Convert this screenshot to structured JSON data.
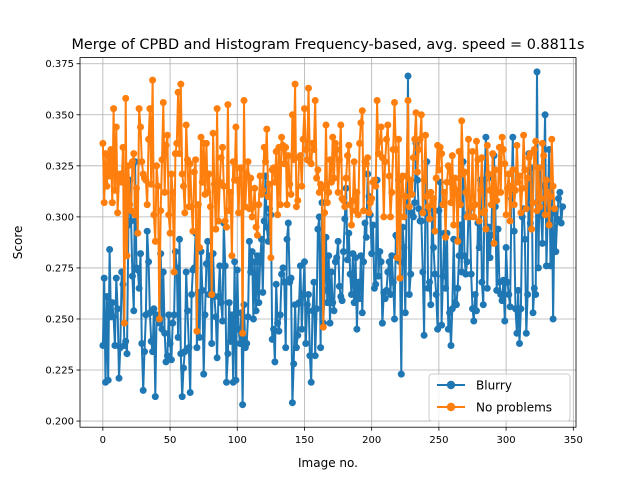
{
  "chart_data": {
    "type": "line",
    "title": "Merge of CPBD and Histogram Frequency-based, avg. speed = 0.8811s",
    "xlabel": "Image no.",
    "ylabel": "Score",
    "xlim": [
      -17,
      352
    ],
    "ylim": [
      0.197,
      0.378
    ],
    "xticks": [
      0,
      50,
      100,
      150,
      200,
      250,
      300,
      350
    ],
    "xtick_labels": [
      "0",
      "50",
      "100",
      "150",
      "200",
      "250",
      "300",
      "350"
    ],
    "yticks": [
      0.2,
      0.225,
      0.25,
      0.275,
      0.3,
      0.325,
      0.35,
      0.375
    ],
    "ytick_labels": [
      "0.200",
      "0.225",
      "0.250",
      "0.275",
      "0.300",
      "0.325",
      "0.350",
      "0.375"
    ],
    "grid": true,
    "legend": "lower-right",
    "series": [
      {
        "name": "Blurry",
        "color": "#1f77b4",
        "values": [
          0.237,
          0.27,
          0.219,
          0.261,
          0.22,
          0.284,
          0.251,
          0.258,
          0.251,
          0.237,
          0.27,
          0.255,
          0.221,
          0.236,
          0.273,
          0.267,
          0.237,
          0.239,
          0.233,
          0.296,
          0.318,
          0.298,
          0.271,
          0.254,
          0.327,
          0.275,
          0.274,
          0.265,
          0.282,
          0.238,
          0.215,
          0.234,
          0.252,
          0.293,
          0.278,
          0.253,
          0.239,
          0.234,
          0.255,
          0.212,
          0.252,
          0.25,
          0.248,
          0.282,
          0.245,
          0.273,
          0.243,
          0.229,
          0.232,
          0.252,
          0.238,
          0.23,
          0.248,
          0.252,
          0.283,
          0.275,
          0.241,
          0.289,
          0.233,
          0.212,
          0.226,
          0.234,
          0.273,
          0.254,
          0.236,
          0.214,
          0.262,
          0.274,
          0.275,
          0.292,
          0.236,
          0.263,
          0.241,
          0.283,
          0.264,
          0.223,
          0.252,
          0.277,
          0.288,
          0.262,
          0.281,
          0.238,
          0.282,
          0.261,
          0.251,
          0.231,
          0.261,
          0.276,
          0.258,
          0.249,
          0.297,
          0.276,
          0.219,
          0.233,
          0.258,
          0.239,
          0.252,
          0.219,
          0.278,
          0.22,
          0.274,
          0.245,
          0.238,
          0.253,
          0.208,
          0.257,
          0.236,
          0.238,
          0.251,
          0.288,
          0.273,
          0.283,
          0.25,
          0.278,
          0.254,
          0.281,
          0.258,
          0.278,
          0.289,
          0.263,
          0.298,
          0.32,
          0.295,
          0.288,
          0.304,
          0.301,
          0.24,
          0.245,
          0.229,
          0.267,
          0.248,
          0.244,
          0.252,
          0.272,
          0.275,
          0.268,
          0.236,
          0.289,
          0.297,
          0.268,
          0.27,
          0.209,
          0.228,
          0.257,
          0.236,
          0.242,
          0.258,
          0.276,
          0.245,
          0.262,
          0.278,
          0.238,
          0.257,
          0.262,
          0.232,
          0.219,
          0.254,
          0.268,
          0.232,
          0.255,
          0.294,
          0.3,
          0.236,
          0.307,
          0.248,
          0.264,
          0.29,
          0.258,
          0.281,
          0.248,
          0.273,
          0.258,
          0.254,
          0.278,
          0.28,
          0.288,
          0.266,
          0.261,
          0.259,
          0.283,
          0.299,
          0.314,
          0.279,
          0.292,
          0.272,
          0.262,
          0.282,
          0.258,
          0.28,
          0.245,
          0.268,
          0.26,
          0.281,
          0.253,
          0.278,
          0.297,
          0.29,
          0.321,
          0.31,
          0.301,
          0.282,
          0.296,
          0.265,
          0.267,
          0.318,
          0.271,
          0.283,
          0.278,
          0.248,
          0.263,
          0.26,
          0.264,
          0.273,
          0.278,
          0.262,
          0.281,
          0.268,
          0.25,
          0.291,
          0.29,
          0.318,
          0.278,
          0.223,
          0.295,
          0.285,
          0.253,
          0.307,
          0.369,
          0.262,
          0.272,
          0.302,
          0.3,
          0.307,
          0.336,
          0.318,
          0.304,
          0.298,
          0.298,
          0.273,
          0.242,
          0.31,
          0.327,
          0.265,
          0.268,
          0.257,
          0.304,
          0.285,
          0.272,
          0.262,
          0.245,
          0.303,
          0.317,
          0.247,
          0.271,
          0.292,
          0.265,
          0.292,
          0.245,
          0.253,
          0.237,
          0.255,
          0.289,
          0.258,
          0.257,
          0.265,
          0.281,
          0.296,
          0.273,
          0.327,
          0.281,
          0.272,
          0.278,
          0.302,
          0.304,
          0.272,
          0.255,
          0.249,
          0.262,
          0.254,
          0.297,
          0.285,
          0.318,
          0.268,
          0.257,
          0.318,
          0.339,
          0.265,
          0.295,
          0.28,
          0.291,
          0.319,
          0.33,
          0.305,
          0.264,
          0.294,
          0.268,
          0.262,
          0.259,
          0.269,
          0.249,
          0.285,
          0.268,
          0.262,
          0.256,
          0.309,
          0.339,
          0.293,
          0.255,
          0.243,
          0.264,
          0.238,
          0.255,
          0.3,
          0.304,
          0.289,
          0.243,
          0.262,
          0.331,
          0.297,
          0.324,
          0.253,
          0.265,
          0.262,
          0.371,
          0.275,
          0.324,
          0.301,
          0.287,
          0.315,
          0.35,
          0.276,
          0.302,
          0.333,
          0.276,
          0.315,
          0.25,
          0.302,
          0.283,
          0.299,
          0.309,
          0.312,
          0.297,
          0.305
        ]
      },
      {
        "name": "No problems",
        "color": "#ff7f0e",
        "values": [
          0.336,
          0.307,
          0.331,
          0.315,
          0.33,
          0.32,
          0.333,
          0.307,
          0.353,
          0.313,
          0.344,
          0.302,
          0.319,
          0.321,
          0.317,
          0.334,
          0.248,
          0.358,
          0.281,
          0.325,
          0.306,
          0.303,
          0.327,
          0.331,
          0.301,
          0.314,
          0.292,
          0.353,
          0.344,
          0.327,
          0.321,
          0.319,
          0.318,
          0.306,
          0.338,
          0.353,
          0.316,
          0.367,
          0.301,
          0.288,
          0.325,
          0.315,
          0.25,
          0.303,
          0.328,
          0.356,
          0.312,
          0.335,
          0.34,
          0.301,
          0.292,
          0.321,
          0.312,
          0.273,
          0.331,
          0.336,
          0.361,
          0.331,
          0.365,
          0.321,
          0.315,
          0.302,
          0.345,
          0.328,
          0.305,
          0.326,
          0.305,
          0.293,
          0.322,
          0.328,
          0.244,
          0.306,
          0.285,
          0.339,
          0.317,
          0.336,
          0.311,
          0.336,
          0.312,
          0.321,
          0.305,
          0.262,
          0.341,
          0.316,
          0.294,
          0.353,
          0.298,
          0.317,
          0.329,
          0.334,
          0.315,
          0.298,
          0.295,
          0.355,
          0.303,
          0.312,
          0.281,
          0.327,
          0.318,
          0.344,
          0.318,
          0.302,
          0.324,
          0.324,
          0.243,
          0.357,
          0.305,
          0.321,
          0.327,
          0.304,
          0.319,
          0.3,
          0.305,
          0.314,
          0.295,
          0.291,
          0.306,
          0.32,
          0.311,
          0.313,
          0.334,
          0.327,
          0.343,
          0.31,
          0.316,
          0.28,
          0.323,
          0.324,
          0.317,
          0.332,
          0.301,
          0.334,
          0.306,
          0.339,
          0.335,
          0.326,
          0.334,
          0.306,
          0.33,
          0.316,
          0.311,
          0.35,
          0.328,
          0.365,
          0.305,
          0.308,
          0.329,
          0.33,
          0.315,
          0.338,
          0.353,
          0.333,
          0.328,
          0.363,
          0.327,
          0.326,
          0.336,
          0.333,
          0.357,
          0.319,
          0.323,
          0.312,
          0.316,
          0.314,
          0.246,
          0.302,
          0.345,
          0.307,
          0.312,
          0.328,
          0.317,
          0.339,
          0.319,
          0.336,
          0.333,
          0.312,
          0.328,
          0.345,
          0.309,
          0.308,
          0.305,
          0.319,
          0.33,
          0.335,
          0.306,
          0.296,
          0.308,
          0.327,
          0.303,
          0.312,
          0.301,
          0.336,
          0.346,
          0.352,
          0.303,
          0.327,
          0.326,
          0.329,
          0.302,
          0.307,
          0.309,
          0.317,
          0.318,
          0.315,
          0.357,
          0.331,
          0.337,
          0.344,
          0.329,
          0.3,
          0.327,
          0.338,
          0.345,
          0.32,
          0.3,
          0.312,
          0.333,
          0.356,
          0.333,
          0.28,
          0.338,
          0.27,
          0.319,
          0.32,
          0.3,
          0.31,
          0.32,
          0.357,
          0.305,
          0.318,
          0.311,
          0.329,
          0.338,
          0.351,
          0.322,
          0.333,
          0.338,
          0.35,
          0.302,
          0.318,
          0.34,
          0.31,
          0.305,
          0.299,
          0.312,
          0.306,
          0.309,
          0.293,
          0.319,
          0.335,
          0.323,
          0.334,
          0.331,
          0.306,
          0.312,
          0.29,
          0.317,
          0.325,
          0.324,
          0.307,
          0.33,
          0.296,
          0.319,
          0.313,
          0.288,
          0.332,
          0.306,
          0.347,
          0.321,
          0.322,
          0.312,
          0.3,
          0.338,
          0.3,
          0.305,
          0.332,
          0.3,
          0.306,
          0.337,
          0.328,
          0.298,
          0.313,
          0.329,
          0.302,
          0.303,
          0.294,
          0.335,
          0.321,
          0.313,
          0.306,
          0.331,
          0.287,
          0.323,
          0.308,
          0.312,
          0.334,
          0.312,
          0.339,
          0.333,
          0.326,
          0.301,
          0.314,
          0.321,
          0.298,
          0.315,
          0.323,
          0.306,
          0.313,
          0.335,
          0.317,
          0.32,
          0.302,
          0.314,
          0.34,
          0.323,
          0.304,
          0.319,
          0.329,
          0.331,
          0.294,
          0.307,
          0.333,
          0.337,
          0.303,
          0.324,
          0.305,
          0.309,
          0.336,
          0.33,
          0.301,
          0.318,
          0.312,
          0.296,
          0.31,
          0.338,
          0.315,
          0.304
        ]
      }
    ]
  }
}
